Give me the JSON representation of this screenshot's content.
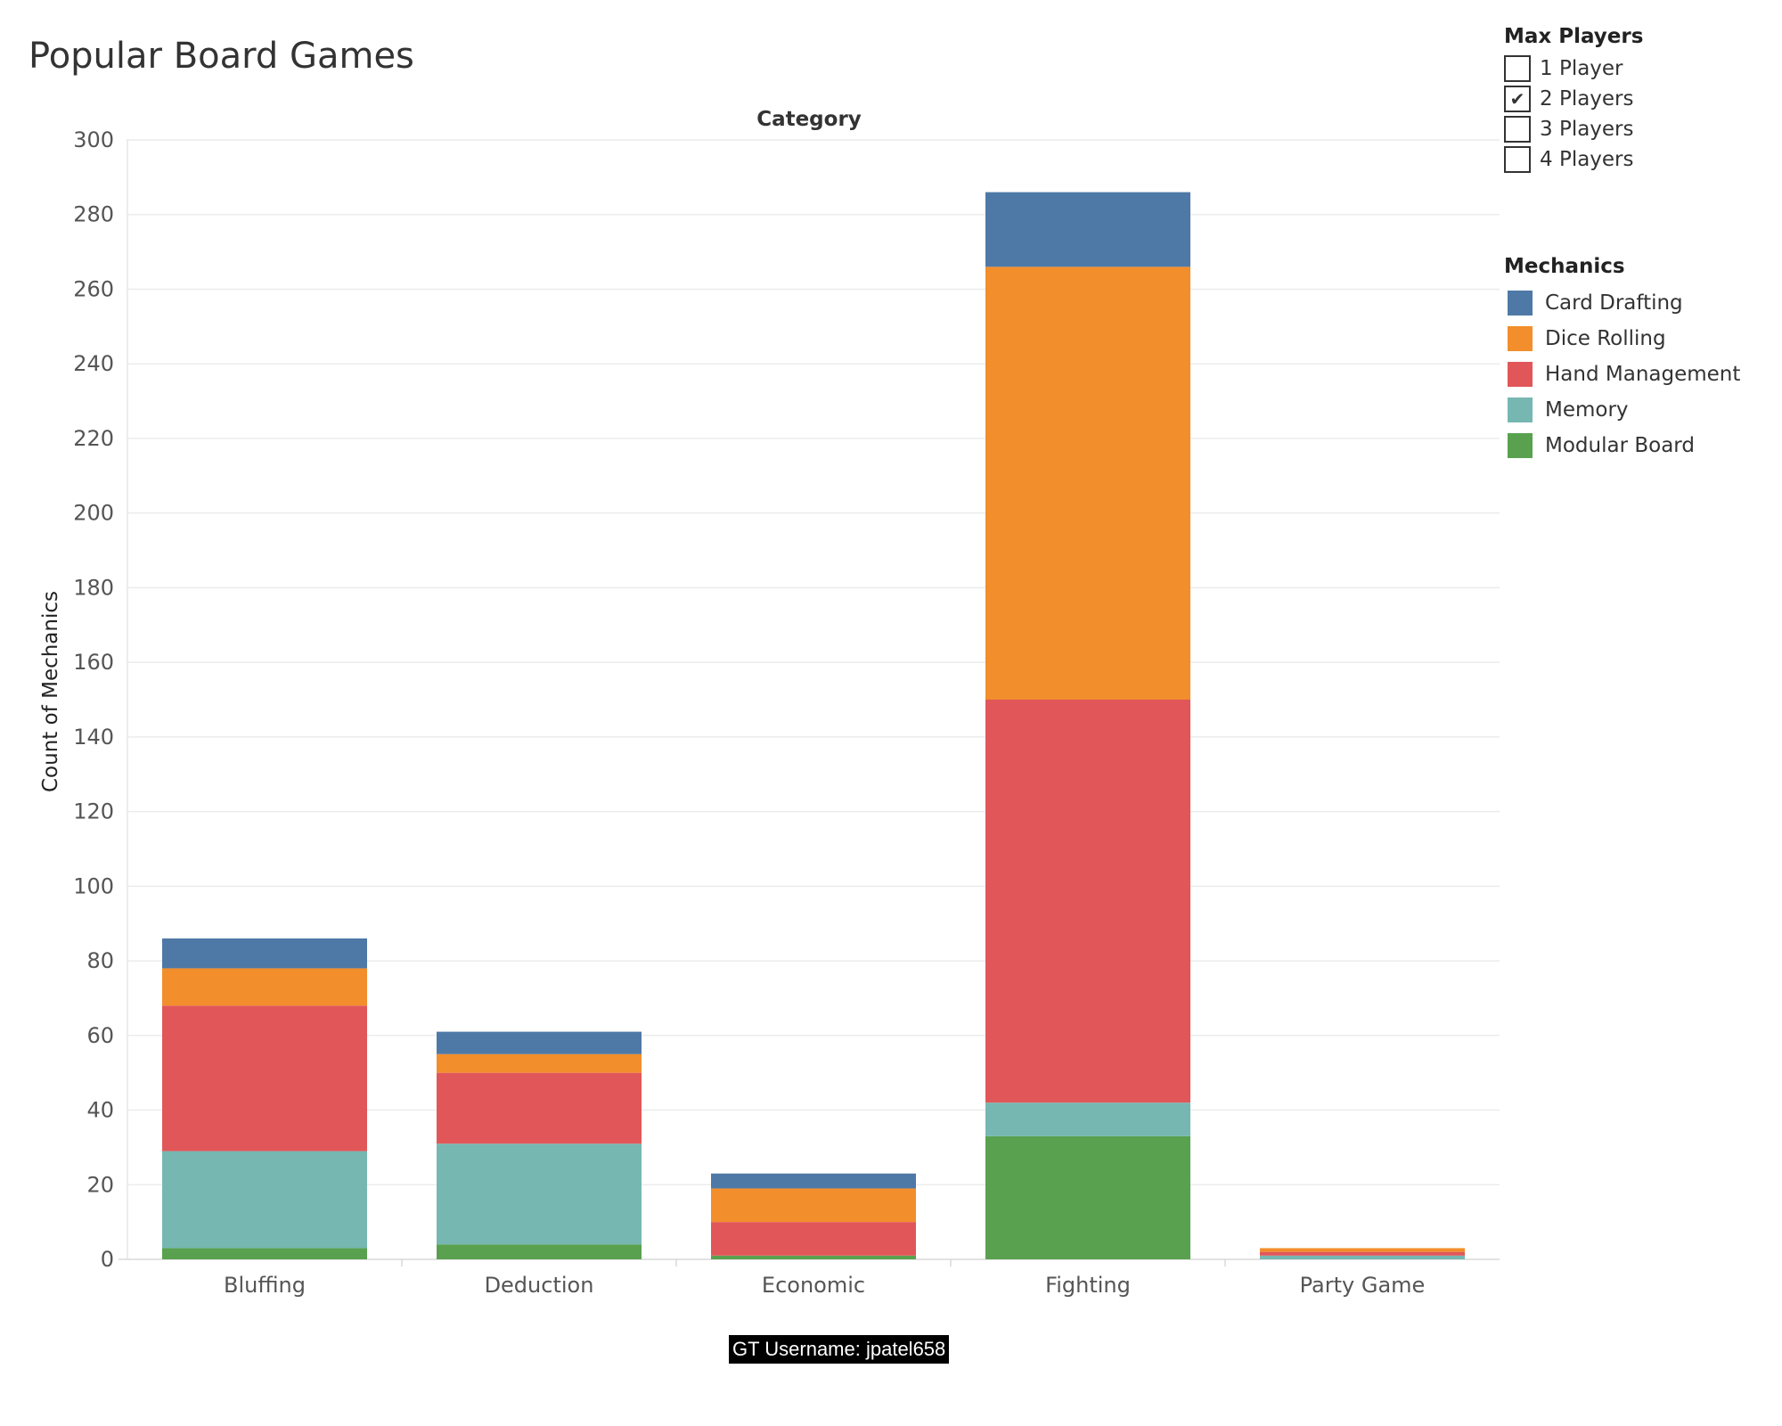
{
  "title": "Popular Board Games",
  "watermark": "GT Username: jpatel658",
  "filter": {
    "title": "Max Players",
    "options": [
      {
        "label": "1 Player",
        "checked": false
      },
      {
        "label": "2 Players",
        "checked": true
      },
      {
        "label": "3 Players",
        "checked": false
      },
      {
        "label": "4 Players",
        "checked": false
      }
    ],
    "check_glyph": "✔"
  },
  "legend": {
    "title": "Mechanics",
    "items": [
      {
        "label": "Card Drafting",
        "color": "#4e79a7"
      },
      {
        "label": "Dice Rolling",
        "color": "#f28e2b"
      },
      {
        "label": "Hand Management",
        "color": "#e15759"
      },
      {
        "label": "Memory",
        "color": "#76b7b2"
      },
      {
        "label": "Modular Board",
        "color": "#59a14f"
      }
    ]
  },
  "chart_data": {
    "type": "bar",
    "stacked": true,
    "title": "Popular Board Games",
    "xlabel": "Category",
    "ylabel": "Count of Mechanics",
    "ylim": [
      0,
      300
    ],
    "yticks": [
      0,
      20,
      40,
      60,
      80,
      100,
      120,
      140,
      160,
      180,
      200,
      220,
      240,
      260,
      280,
      300
    ],
    "grid": true,
    "legend_position": "right",
    "categories": [
      "Bluffing",
      "Deduction",
      "Economic",
      "Fighting",
      "Party Game"
    ],
    "series": [
      {
        "name": "Modular Board",
        "color": "#59a14f",
        "values": [
          3,
          4,
          1,
          33,
          0
        ]
      },
      {
        "name": "Memory",
        "color": "#76b7b2",
        "values": [
          26,
          27,
          0,
          9,
          1
        ]
      },
      {
        "name": "Hand Management",
        "color": "#e15759",
        "values": [
          39,
          19,
          9,
          108,
          1
        ]
      },
      {
        "name": "Dice Rolling",
        "color": "#f28e2b",
        "values": [
          10,
          5,
          9,
          116,
          1
        ]
      },
      {
        "name": "Card Drafting",
        "color": "#4e79a7",
        "values": [
          8,
          6,
          4,
          20,
          0
        ]
      }
    ]
  }
}
